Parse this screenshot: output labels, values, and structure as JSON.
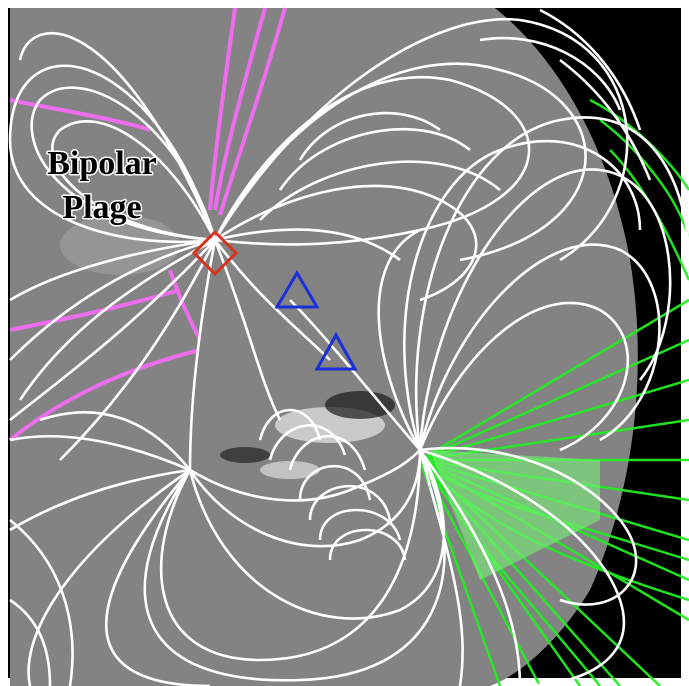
{
  "figure": {
    "annotation": {
      "line1": "Bipolar",
      "line2": "Plage"
    },
    "colors": {
      "magnetogram_background": "#838383",
      "space_background": "#000000",
      "closed_field_lines": "#ffffff",
      "open_field_lines_left": "#ee6cee",
      "open_field_lines_right": "#22ee22",
      "marker_diamond": "#d8321e",
      "marker_triangles": "#1a2fd8"
    },
    "markers": [
      {
        "shape": "diamond",
        "color": "#d8321e"
      },
      {
        "shape": "triangle",
        "color": "#1a2fd8"
      },
      {
        "shape": "triangle",
        "color": "#1a2fd8"
      }
    ]
  }
}
